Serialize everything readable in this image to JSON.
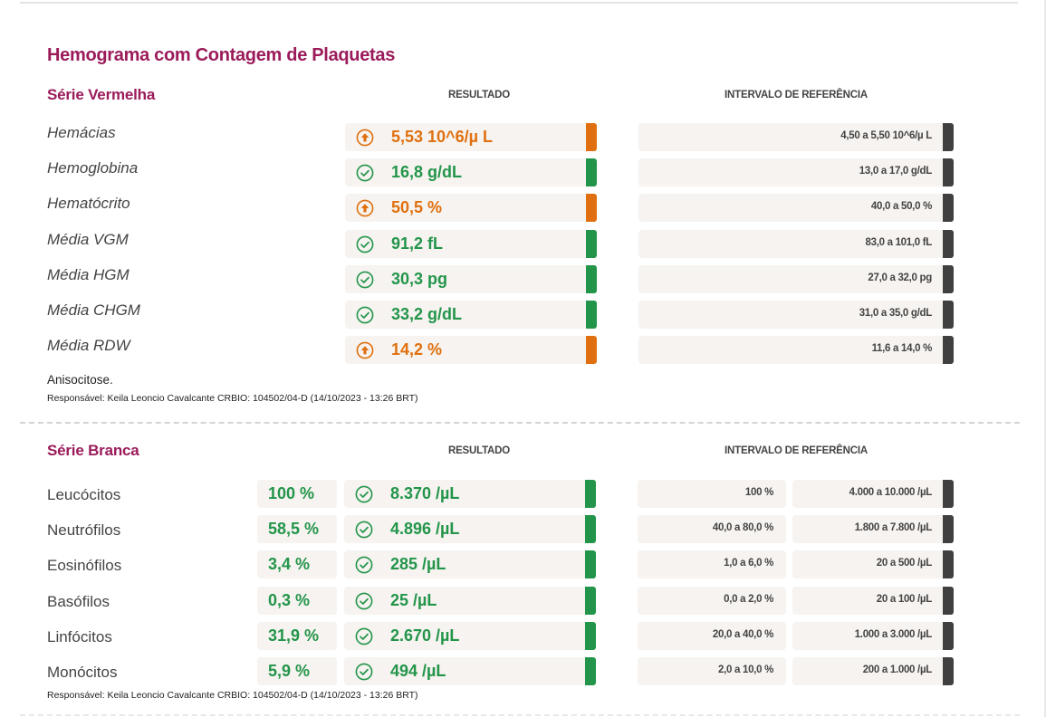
{
  "page_title": "Hemograma com Contagem de Plaquetas",
  "red": {
    "title": "Série Vermelha",
    "col_result": "RESULTADO",
    "col_reference": "INTERVALO DE REFERÊNCIA",
    "rows": [
      {
        "label": "Hemácias",
        "value": "5,53 10^6/µ L",
        "status": "high",
        "ref": "4,50 a 5,50 10^6/µ L"
      },
      {
        "label": "Hemoglobina",
        "value": "16,8 g/dL",
        "status": "normal",
        "ref": "13,0 a 17,0 g/dL"
      },
      {
        "label": "Hematócrito",
        "value": "50,5 %",
        "status": "high",
        "ref": "40,0 a 50,0 %"
      },
      {
        "label": "Média VGM",
        "value": "91,2 fL",
        "status": "normal",
        "ref": "83,0 a 101,0 fL"
      },
      {
        "label": "Média HGM",
        "value": "30,3 pg",
        "status": "normal",
        "ref": "27,0 a 32,0 pg"
      },
      {
        "label": "Média CHGM",
        "value": "33,2 g/dL",
        "status": "normal",
        "ref": "31,0 a 35,0 g/dL"
      },
      {
        "label": "Média RDW",
        "value": "14,2 %",
        "status": "high",
        "ref": "11,6 a 14,0 %"
      }
    ],
    "note": "Anisocitose.",
    "responsible": "Responsável: Keila Leoncio Cavalcante CRBIO: 104502/04-D (14/10/2023 - 13:26 BRT)"
  },
  "white": {
    "title": "Série Branca",
    "col_result": "RESULTADO",
    "col_reference": "INTERVALO DE REFERÊNCIA",
    "rows": [
      {
        "label": "Leucócitos",
        "pct": "100 %",
        "value": "8.370 /µL",
        "status": "normal",
        "ref_pct": "100 %",
        "ref_abs": "4.000 a 10.000 /µL"
      },
      {
        "label": "Neutrófilos",
        "pct": "58,5 %",
        "value": "4.896 /µL",
        "status": "normal",
        "ref_pct": "40,0 a 80,0 %",
        "ref_abs": "1.800 a 7.800 /µL"
      },
      {
        "label": "Eosinófilos",
        "pct": "3,4 %",
        "value": "285 /µL",
        "status": "normal",
        "ref_pct": "1,0 a 6,0 %",
        "ref_abs": "20 a 500 /µL"
      },
      {
        "label": "Basófilos",
        "pct": "0,3 %",
        "value": "25 /µL",
        "status": "normal",
        "ref_pct": "0,0 a 2,0 %",
        "ref_abs": "20 a 100 /µL"
      },
      {
        "label": "Linfócitos",
        "pct": "31,9 %",
        "value": "2.670 /µL",
        "status": "normal",
        "ref_pct": "20,0 a 40,0 %",
        "ref_abs": "1.000 a 3.000 /µL"
      },
      {
        "label": "Monócitos",
        "pct": "5,9 %",
        "value": "494 /µL",
        "status": "normal",
        "ref_pct": "2,0 a 10,0 %",
        "ref_abs": "200 a 1.000 /µL"
      }
    ],
    "responsible": "Responsável: Keila Leoncio Cavalcante CRBIO: 104502/04-D (14/10/2023 - 13:26 BRT)"
  },
  "colors": {
    "title": "#9b1b5a",
    "normal": "#23954a",
    "high": "#e0700f",
    "ref_bar": "#404040"
  }
}
